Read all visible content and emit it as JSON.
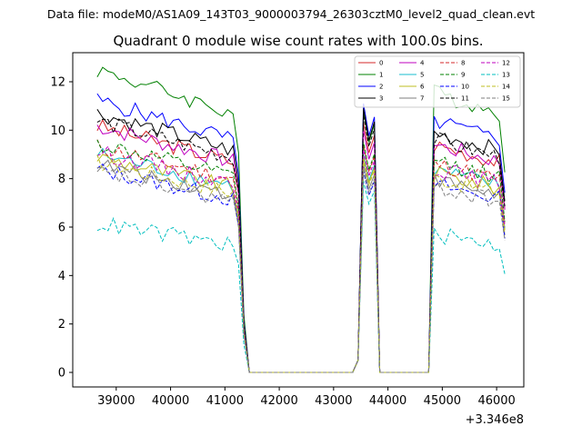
{
  "figure": {
    "suptitle": "Data file: modeM0/AS1A09_143T03_9000003794_26303cztM0_level2_quad_clean.evt"
  },
  "chart_data": {
    "type": "line",
    "title": "Quadrant 0 module wise count rates with 100.0s bins.",
    "xlabel": "",
    "ylabel": "",
    "x_offset_label": "+3.346e8",
    "xlim": [
      38200,
      46500
    ],
    "ylim": [
      -0.6,
      13.2
    ],
    "xticks": [
      39000,
      40000,
      41000,
      42000,
      43000,
      44000,
      45000,
      46000
    ],
    "xtick_labels": [
      "39000",
      "40000",
      "41000",
      "42000",
      "43000",
      "44000",
      "45000",
      "46000"
    ],
    "yticks": [
      0,
      2,
      4,
      6,
      8,
      10,
      12
    ],
    "ytick_labels": [
      "0",
      "2",
      "4",
      "6",
      "8",
      "10",
      "12"
    ],
    "grid": false,
    "legend_position": "top-right",
    "bin_seconds": 100,
    "x_start": 38650,
    "segments": [
      {
        "name": "segment-1",
        "x_start": 38650,
        "x_end": 41250
      },
      {
        "name": "segment-2",
        "x_start": 43550,
        "x_end": 43750
      },
      {
        "name": "segment-3",
        "x_start": 44850,
        "x_end": 46150
      }
    ],
    "gap_value": 0,
    "series": [
      {
        "name": "0",
        "color": "#d62728",
        "style": "solid",
        "level": 9.6,
        "spike": 10.3
      },
      {
        "name": "1",
        "color": "#008000",
        "style": "solid",
        "level": 11.8,
        "spike": 10.8
      },
      {
        "name": "2",
        "color": "#0000ff",
        "style": "solid",
        "level": 10.6,
        "spike": 11.1
      },
      {
        "name": "3",
        "color": "#000000",
        "style": "solid",
        "level": 10.1,
        "spike": 10.9
      },
      {
        "name": "4",
        "color": "#bf00bf",
        "style": "solid",
        "level": 9.6,
        "spike": 10.0
      },
      {
        "name": "5",
        "color": "#17becf",
        "style": "solid",
        "level": 8.5,
        "spike": 9.0
      },
      {
        "name": "6",
        "color": "#bcbd22",
        "style": "solid",
        "level": 8.4,
        "spike": 8.9
      },
      {
        "name": "7",
        "color": "#7f7f7f",
        "style": "solid",
        "level": 8.1,
        "spike": 8.6
      },
      {
        "name": "8",
        "color": "#d62728",
        "style": "dashed",
        "level": 8.8,
        "spike": 9.4
      },
      {
        "name": "9",
        "color": "#008000",
        "style": "dashed",
        "level": 8.9,
        "spike": 9.5
      },
      {
        "name": "10",
        "color": "#0000ff",
        "style": "dashed",
        "level": 7.9,
        "spike": 8.3
      },
      {
        "name": "11",
        "color": "#000000",
        "style": "dashed",
        "level": 9.8,
        "spike": 10.6
      },
      {
        "name": "12",
        "color": "#bf00bf",
        "style": "dashed",
        "level": 8.6,
        "spike": 9.2
      },
      {
        "name": "13",
        "color": "#00bfbf",
        "style": "dashed",
        "level": 5.8,
        "spike": 7.9
      },
      {
        "name": "14",
        "color": "#bcbd22",
        "style": "dashed",
        "level": 8.2,
        "spike": 8.8
      },
      {
        "name": "15",
        "color": "#7f7f7f",
        "style": "dashed",
        "level": 7.8,
        "spike": 8.4
      }
    ]
  }
}
